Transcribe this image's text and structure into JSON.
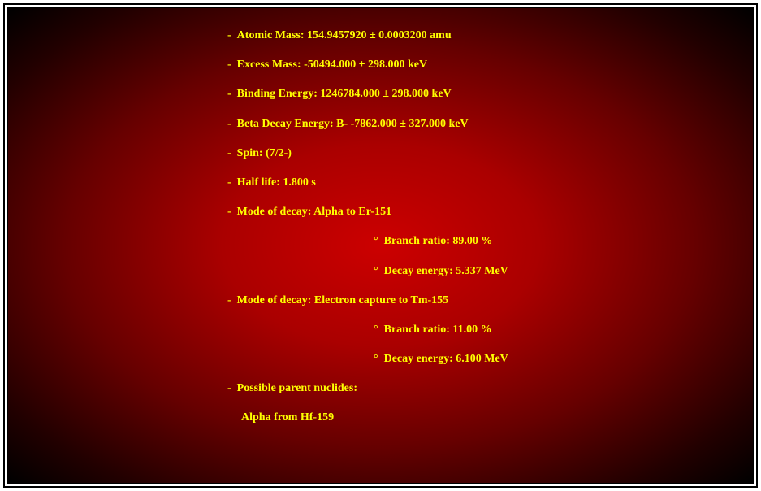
{
  "colors": {
    "text": "#ffff00",
    "bg_center": "#cc0000",
    "bg_edge": "#000000",
    "frame_border": "#000000",
    "frame_bg": "#ffffff"
  },
  "typography": {
    "font_family": "Times New Roman",
    "font_size_pt": 11,
    "font_weight": "bold"
  },
  "items": {
    "atomic_mass": "Atomic Mass: 154.9457920 ± 0.0003200 amu",
    "excess_mass": "Excess Mass: -50494.000 ± 298.000 keV",
    "binding_energy": "Binding Energy: 1246784.000 ± 298.000 keV",
    "beta_decay": "Beta Decay Energy: B- -7862.000 ± 327.000 keV",
    "spin": "Spin: (7/2-)",
    "half_life": "Half life: 1.800 s",
    "decay1": {
      "mode": "Mode of decay: Alpha to Er-151",
      "branch": "Branch ratio: 89.00 %",
      "energy": "Decay energy: 5.337 MeV"
    },
    "decay2": {
      "mode": "Mode of decay: Electron capture to Tm-155",
      "branch": "Branch ratio: 11.00 %",
      "energy": "Decay energy: 6.100 MeV"
    },
    "parent_label": "Possible parent nuclides:",
    "parent1": "Alpha from Hf-159"
  }
}
